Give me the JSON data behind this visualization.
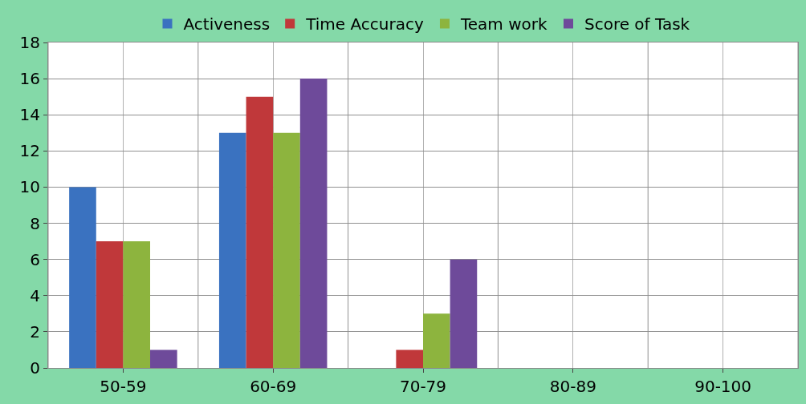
{
  "chart_data": {
    "type": "bar",
    "categories": [
      "50-59",
      "60-69",
      "70-79",
      "80-89",
      "90-100"
    ],
    "series": [
      {
        "name": "Activeness",
        "color": "#3a72c0",
        "values": [
          10,
          13,
          0,
          0,
          0
        ]
      },
      {
        "name": "Time Accuracy",
        "color": "#c0383a",
        "values": [
          7,
          15,
          1,
          0,
          0
        ]
      },
      {
        "name": "Team work",
        "color": "#8db43e",
        "values": [
          7,
          13,
          3,
          0,
          0
        ]
      },
      {
        "name": "Score of Task",
        "color": "#6e4a9a",
        "values": [
          1,
          16,
          6,
          0,
          0
        ]
      }
    ],
    "ylim": [
      0,
      18
    ],
    "yticks": [
      0,
      2,
      4,
      6,
      8,
      10,
      12,
      14,
      16,
      18
    ],
    "grid": true,
    "legend": "top"
  }
}
